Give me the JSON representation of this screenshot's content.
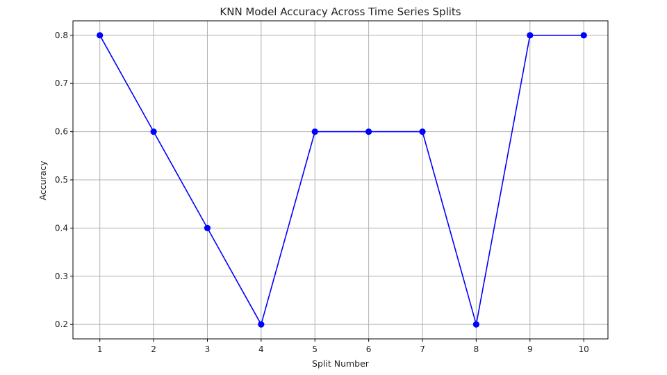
{
  "chart_data": {
    "type": "line",
    "title": "KNN Model Accuracy Across Time Series Splits",
    "xlabel": "Split Number",
    "ylabel": "Accuracy",
    "x": [
      1,
      2,
      3,
      4,
      5,
      6,
      7,
      8,
      9,
      10
    ],
    "series": [
      {
        "values": [
          0.8,
          0.6,
          0.4,
          0.2,
          0.6,
          0.6,
          0.6,
          0.2,
          0.8,
          0.8
        ],
        "color": "#0000ff",
        "marker": "circle"
      }
    ],
    "xlim": [
      0.5,
      10.45
    ],
    "ylim": [
      0.17,
      0.83
    ],
    "x_ticks": [
      "1",
      "2",
      "3",
      "4",
      "5",
      "6",
      "7",
      "8",
      "9",
      "10"
    ],
    "y_ticks": [
      "0.2",
      "0.3",
      "0.4",
      "0.5",
      "0.6",
      "0.7",
      "0.8"
    ],
    "grid": true,
    "colors": {
      "line": "#0000ff",
      "grid": "#b0b0b0",
      "axis": "#000000"
    }
  }
}
